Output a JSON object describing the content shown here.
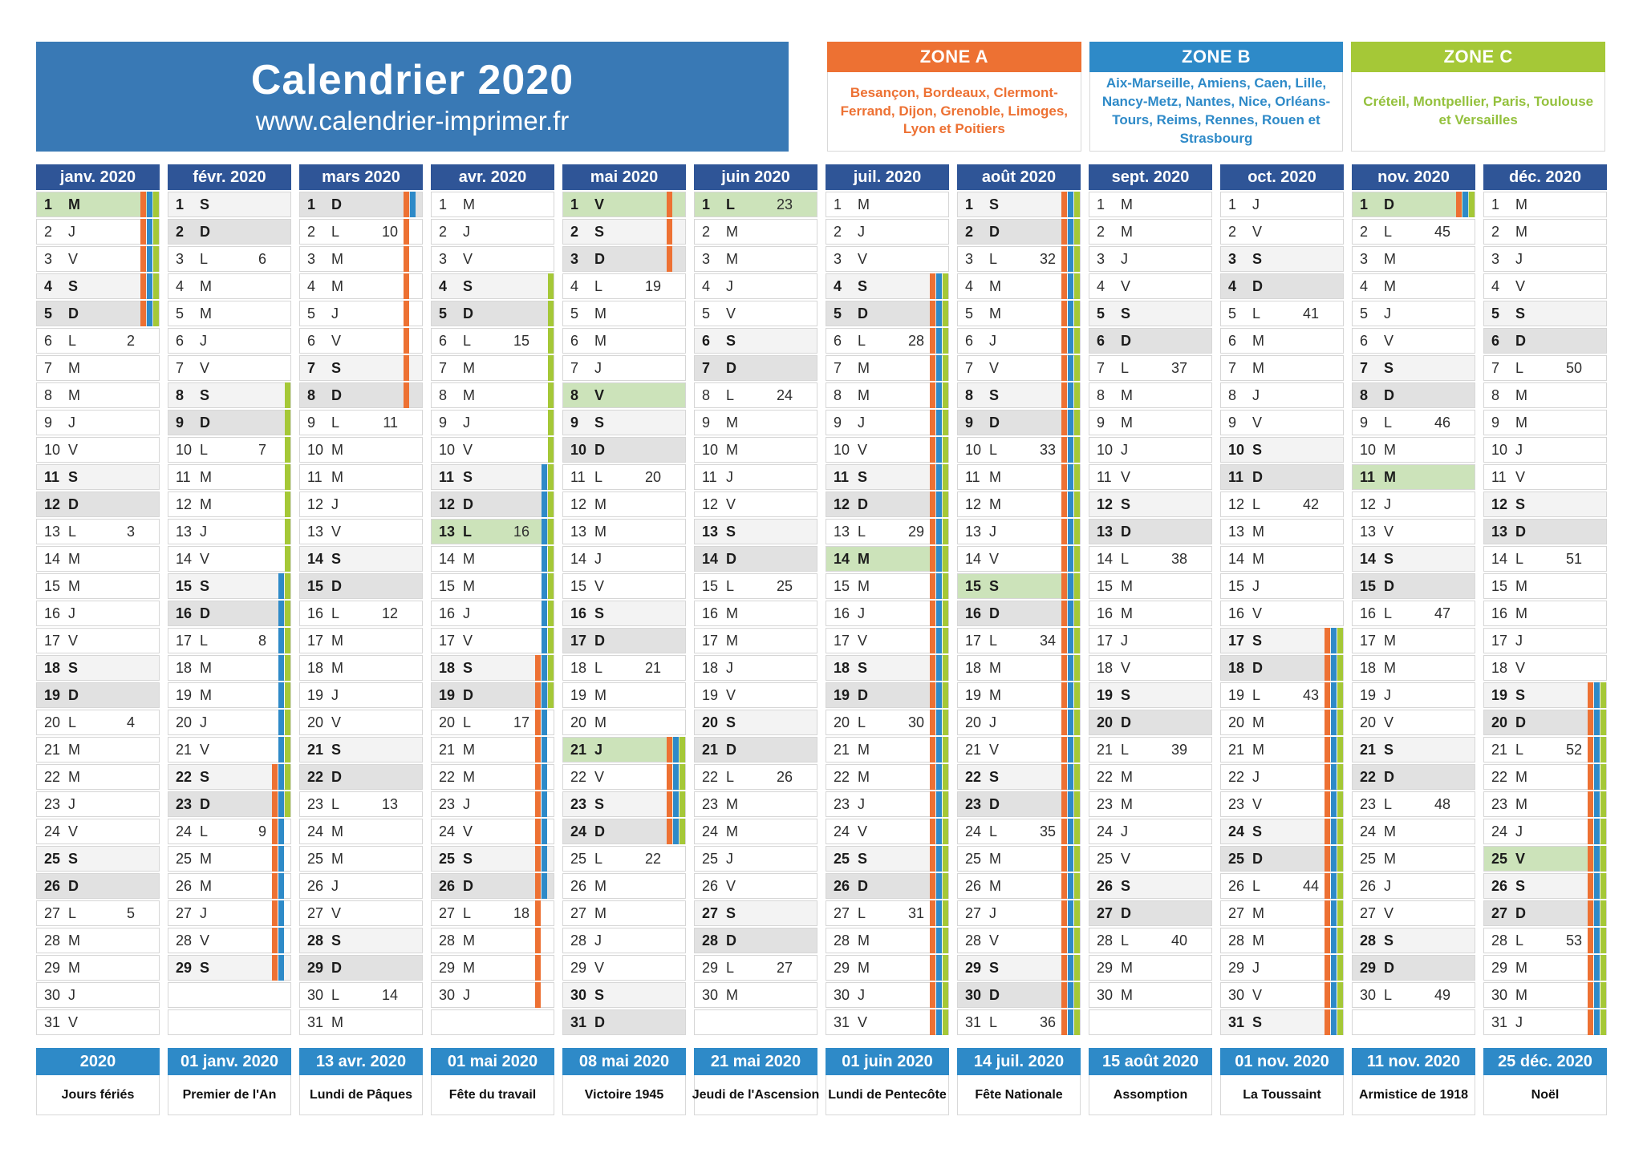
{
  "header": {
    "title": "Calendrier 2020",
    "website": "www.calendrier-imprimer.fr"
  },
  "zones": [
    {
      "name": "ZONE A",
      "color": "#ED7133",
      "cities": "Besançon, Bordeaux, Clermont-Ferrand, Dijon, Grenoble, Limoges, Lyon et Poitiers"
    },
    {
      "name": "ZONE B",
      "color": "#2E8AC8",
      "cities": "Aix-Marseille, Amiens, Caen, Lille, Nancy-Metz, Nantes, Nice, Orléans-Tours, Reims, Rennes, Rouen et Strasbourg"
    },
    {
      "name": "ZONE C",
      "color": "#A5C837",
      "text_color": "#94C13D",
      "cities": "Créteil, Montpellier, Paris, Toulouse et Versailles"
    }
  ],
  "colors": {
    "banner_bg": "#3979B5",
    "month_header_bg": "#2F5597",
    "footer_header_bg": "#2E8AC8",
    "holiday_bg": "#CCE3BA",
    "saturday_bg": "#F3F3F3",
    "sunday_bg": "#E1E1E1",
    "stripe_zone_a": "#ED7133",
    "stripe_zone_b": "#2E8AC8",
    "stripe_zone_c": "#A5C837"
  },
  "calendar": {
    "day_format": "letter,weekNumber,type(s=saturday d=sunday h=holiday),vacationZones",
    "months": [
      {
        "name": "janv. 2020",
        "days": [
          "M,,h,ABC",
          "J,,,ABC",
          "V,,,ABC",
          "S,,s,ABC",
          "D,,d,ABC",
          "L,2",
          "M",
          "M",
          "J",
          "V",
          "S,,s",
          "D,,d",
          "L,3",
          "M",
          "M",
          "J",
          "V",
          "S,,s",
          "D,,d",
          "L,4",
          "M",
          "M",
          "J",
          "V",
          "S,,s",
          "D,,d",
          "L,5",
          "M",
          "M",
          "J",
          "V"
        ]
      },
      {
        "name": "févr. 2020",
        "days": [
          "S,,s",
          "D,,d",
          "L,6",
          "M",
          "M",
          "J",
          "V",
          "S,,s,C",
          "D,,d,C",
          "L,7,,C",
          "M,,,C",
          "M,,,C",
          "J,,,C",
          "V,,,C",
          "S,,s,BC",
          "D,,d,BC",
          "L,8,,BC",
          "M,,,BC",
          "M,,,BC",
          "J,,,BC",
          "V,,,BC",
          "S,,s,ABC",
          "D,,d,ABC",
          "L,9,,AB",
          "M,,,AB",
          "M,,,AB",
          "J,,,AB",
          "V,,,AB",
          "S,,s,AB"
        ]
      },
      {
        "name": "mars 2020",
        "days": [
          "D,,d,AB",
          "L,10,,A",
          "M,,,A",
          "M,,,A",
          "J,,,A",
          "V,,,A",
          "S,,s,A",
          "D,,d,A",
          "L,11",
          "M",
          "M",
          "J",
          "V",
          "S,,s",
          "D,,d",
          "L,12",
          "M",
          "M",
          "J",
          "V",
          "S,,s",
          "D,,d",
          "L,13",
          "M",
          "M",
          "J",
          "V",
          "S,,s",
          "D,,d",
          "L,14",
          "M"
        ]
      },
      {
        "name": "avr. 2020",
        "days": [
          "M",
          "J",
          "V",
          "S,,s,C",
          "D,,d,C",
          "L,15,,C",
          "M,,,C",
          "M,,,C",
          "J,,,C",
          "V,,,C",
          "S,,s,BC",
          "D,,d,BC",
          "L,16,h,BC",
          "M,,,BC",
          "M,,,BC",
          "J,,,BC",
          "V,,,BC",
          "S,,s,ABC",
          "D,,d,ABC",
          "L,17,,AB",
          "M,,,AB",
          "M,,,AB",
          "J,,,AB",
          "V,,,AB",
          "S,,s,AB",
          "D,,d,AB",
          "L,18,,A",
          "M,,,A",
          "M,,,A",
          "J,,,A"
        ]
      },
      {
        "name": "mai 2020",
        "days": [
          "V,,h,A",
          "S,,s,A",
          "D,,d,A",
          "L,19",
          "M",
          "M",
          "J",
          "V,,h",
          "S,,s",
          "D,,d",
          "L,20",
          "M",
          "M",
          "J",
          "V",
          "S,,s",
          "D,,d",
          "L,21",
          "M",
          "M",
          "J,,h,ABC",
          "V,,,ABC",
          "S,,s,ABC",
          "D,,d,ABC",
          "L,22",
          "M",
          "M",
          "J",
          "V",
          "S,,s",
          "D,,d"
        ]
      },
      {
        "name": "juin 2020",
        "days": [
          "L,23,h",
          "M",
          "M",
          "J",
          "V",
          "S,,s",
          "D,,d",
          "L,24",
          "M",
          "M",
          "J",
          "V",
          "S,,s",
          "D,,d",
          "L,25",
          "M",
          "M",
          "J",
          "V",
          "S,,s",
          "D,,d",
          "L,26",
          "M",
          "M",
          "J",
          "V",
          "S,,s",
          "D,,d",
          "L,27",
          "M"
        ]
      },
      {
        "name": "juil. 2020",
        "days": [
          "M",
          "J",
          "V",
          "S,,s,ABC",
          "D,,d,ABC",
          "L,28,,ABC",
          "M,,,ABC",
          "M,,,ABC",
          "J,,,ABC",
          "V,,,ABC",
          "S,,s,ABC",
          "D,,d,ABC",
          "L,29,,ABC",
          "M,,h,ABC",
          "M,,,ABC",
          "J,,,ABC",
          "V,,,ABC",
          "S,,s,ABC",
          "D,,d,ABC",
          "L,30,,ABC",
          "M,,,ABC",
          "M,,,ABC",
          "J,,,ABC",
          "V,,,ABC",
          "S,,s,ABC",
          "D,,d,ABC",
          "L,31,,ABC",
          "M,,,ABC",
          "M,,,ABC",
          "J,,,ABC",
          "V,,,ABC"
        ]
      },
      {
        "name": "août 2020",
        "days": [
          "S,,s,ABC",
          "D,,d,ABC",
          "L,32,,ABC",
          "M,,,ABC",
          "M,,,ABC",
          "J,,,ABC",
          "V,,,ABC",
          "S,,s,ABC",
          "D,,d,ABC",
          "L,33,,ABC",
          "M,,,ABC",
          "M,,,ABC",
          "J,,,ABC",
          "V,,,ABC",
          "S,,h,ABC",
          "D,,d,ABC",
          "L,34,,ABC",
          "M,,,ABC",
          "M,,,ABC",
          "J,,,ABC",
          "V,,,ABC",
          "S,,s,ABC",
          "D,,d,ABC",
          "L,35,,ABC",
          "M,,,ABC",
          "M,,,ABC",
          "J,,,ABC",
          "V,,,ABC",
          "S,,s,ABC",
          "D,,d,ABC",
          "L,36,,ABC"
        ]
      },
      {
        "name": "sept. 2020",
        "days": [
          "M",
          "M",
          "J",
          "V",
          "S,,s",
          "D,,d",
          "L,37",
          "M",
          "M",
          "J",
          "V",
          "S,,s",
          "D,,d",
          "L,38",
          "M",
          "M",
          "J",
          "V",
          "S,,s",
          "D,,d",
          "L,39",
          "M",
          "M",
          "J",
          "V",
          "S,,s",
          "D,,d",
          "L,40",
          "M",
          "M"
        ]
      },
      {
        "name": "oct. 2020",
        "days": [
          "J",
          "V",
          "S,,s",
          "D,,d",
          "L,41",
          "M",
          "M",
          "J",
          "V",
          "S,,s",
          "D,,d",
          "L,42",
          "M",
          "M",
          "J",
          "V",
          "S,,s,ABC",
          "D,,d,ABC",
          "L,43,,ABC",
          "M,,,ABC",
          "M,,,ABC",
          "J,,,ABC",
          "V,,,ABC",
          "S,,s,ABC",
          "D,,d,ABC",
          "L,44,,ABC",
          "M,,,ABC",
          "M,,,ABC",
          "J,,,ABC",
          "V,,,ABC",
          "S,,s,ABC"
        ]
      },
      {
        "name": "nov. 2020",
        "days": [
          "D,,h,ABC",
          "L,45",
          "M",
          "M",
          "J",
          "V",
          "S,,s",
          "D,,d",
          "L,46",
          "M",
          "M,,h",
          "J",
          "V",
          "S,,s",
          "D,,d",
          "L,47",
          "M",
          "M",
          "J",
          "V",
          "S,,s",
          "D,,d",
          "L,48",
          "M",
          "M",
          "J",
          "V",
          "S,,s",
          "D,,d",
          "L,49"
        ]
      },
      {
        "name": "déc. 2020",
        "days": [
          "M",
          "M",
          "J",
          "V",
          "S,,s",
          "D,,d",
          "L,50",
          "M",
          "M",
          "J",
          "V",
          "S,,s",
          "D,,d",
          "L,51",
          "M",
          "M",
          "J",
          "V",
          "S,,s,ABC",
          "D,,d,ABC",
          "L,52,,ABC",
          "M,,,ABC",
          "M,,,ABC",
          "J,,,ABC",
          "V,,h,ABC",
          "S,,s,ABC",
          "D,,d,ABC",
          "L,53,,ABC",
          "M,,,ABC",
          "M,,,ABC",
          "J,,,ABC"
        ]
      }
    ]
  },
  "footer": [
    {
      "date": "2020",
      "name": "Jours fériés"
    },
    {
      "date": "01 janv. 2020",
      "name": "Premier de l'An"
    },
    {
      "date": "13 avr. 2020",
      "name": "Lundi de Pâques"
    },
    {
      "date": "01 mai 2020",
      "name": "Fête du travail"
    },
    {
      "date": "08 mai 2020",
      "name": "Victoire 1945"
    },
    {
      "date": "21 mai 2020",
      "name": "Jeudi de l'Ascension"
    },
    {
      "date": "01 juin 2020",
      "name": "Lundi de Pentecôte"
    },
    {
      "date": "14 juil. 2020",
      "name": "Fête Nationale"
    },
    {
      "date": "15 août 2020",
      "name": "Assomption"
    },
    {
      "date": "01 nov. 2020",
      "name": "La Toussaint"
    },
    {
      "date": "11 nov. 2020",
      "name": "Armistice de 1918"
    },
    {
      "date": "25 déc. 2020",
      "name": "Noël"
    }
  ]
}
